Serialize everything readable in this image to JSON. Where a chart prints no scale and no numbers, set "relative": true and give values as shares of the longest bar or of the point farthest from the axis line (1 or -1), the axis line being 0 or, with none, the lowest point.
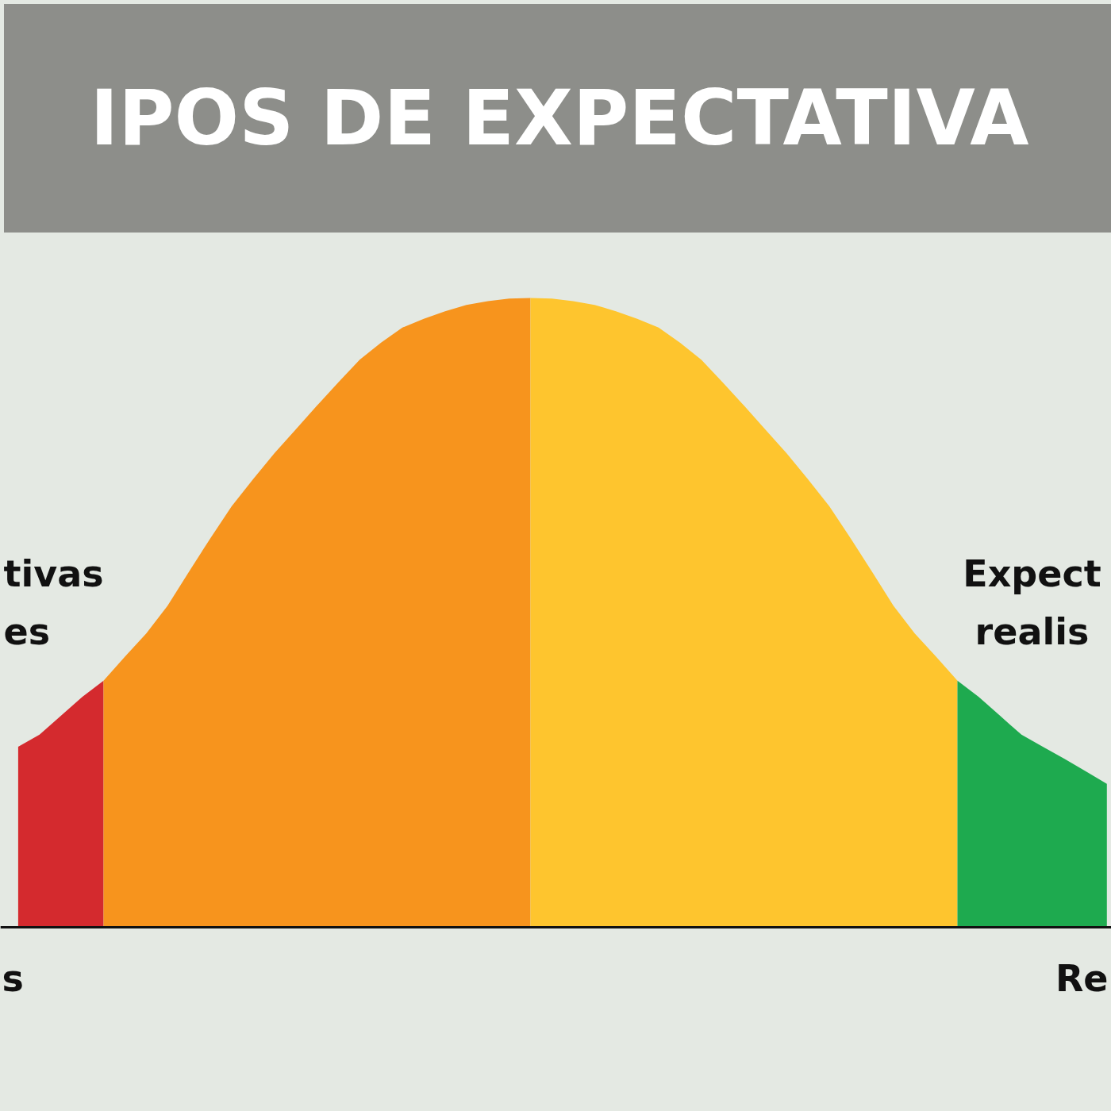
{
  "chart_data": {
    "type": "area",
    "title": "IPOS DE EXPECTATIVA",
    "relative": true,
    "categories": [
      null,
      null,
      null,
      null,
      null,
      null,
      null,
      null,
      null,
      null,
      null,
      null,
      null,
      null,
      null,
      null,
      null,
      null,
      null,
      null,
      null,
      null,
      null,
      null,
      null,
      null,
      null,
      null,
      null,
      null,
      null,
      null,
      null,
      null,
      null,
      null,
      null,
      null,
      null,
      null,
      null,
      null,
      null,
      null,
      null,
      null,
      null,
      null,
      null,
      null,
      null,
      null
    ],
    "series": [
      {
        "color": "#d42a2e",
        "values": [
          0.287,
          0.306,
          0.336,
          0.366,
          0.392,
          null,
          null,
          null,
          null,
          null,
          null,
          null,
          null,
          null,
          null,
          null,
          null,
          null,
          null,
          null,
          null,
          null,
          null,
          null,
          null,
          null,
          null,
          null,
          null,
          null,
          null,
          null,
          null,
          null,
          null,
          null,
          null,
          null,
          null,
          null,
          null,
          null,
          null,
          null,
          null,
          null,
          null,
          null,
          null,
          null,
          null,
          null
        ]
      },
      {
        "color": "#f7941d",
        "values": [
          null,
          null,
          null,
          null,
          0.392,
          0.43,
          0.467,
          0.511,
          0.565,
          0.618,
          0.669,
          0.712,
          0.753,
          0.791,
          0.829,
          0.866,
          0.902,
          0.929,
          0.953,
          0.967,
          0.979,
          0.989,
          0.995,
          0.999,
          1.0,
          null,
          null,
          null,
          null,
          null,
          null,
          null,
          null,
          null,
          null,
          null,
          null,
          null,
          null,
          null,
          null,
          null,
          null,
          null,
          null,
          null,
          null,
          null,
          null,
          null,
          null,
          null
        ]
      },
      {
        "color": "#fec52e",
        "values": [
          null,
          null,
          null,
          null,
          null,
          null,
          null,
          null,
          null,
          null,
          null,
          null,
          null,
          null,
          null,
          null,
          null,
          null,
          null,
          null,
          null,
          null,
          null,
          null,
          1.0,
          0.999,
          0.995,
          0.989,
          0.979,
          0.967,
          0.953,
          0.929,
          0.902,
          0.866,
          0.829,
          0.791,
          0.753,
          0.712,
          0.669,
          0.618,
          0.565,
          0.511,
          0.467,
          0.43,
          0.392,
          null,
          null,
          null,
          null,
          null,
          null,
          null
        ]
      },
      {
        "color": "#1eaa4f",
        "values": [
          null,
          null,
          null,
          null,
          null,
          null,
          null,
          null,
          null,
          null,
          null,
          null,
          null,
          null,
          null,
          null,
          null,
          null,
          null,
          null,
          null,
          null,
          null,
          null,
          null,
          null,
          null,
          null,
          null,
          null,
          null,
          null,
          null,
          null,
          null,
          null,
          null,
          null,
          null,
          null,
          null,
          null,
          null,
          null,
          0.392,
          0.366,
          0.336,
          0.306,
          0.287,
          0.268,
          0.248,
          0.228
        ]
      }
    ],
    "annotations": [
      "tivas\nes",
      "Expect\nrealis",
      "s",
      "Re"
    ]
  }
}
